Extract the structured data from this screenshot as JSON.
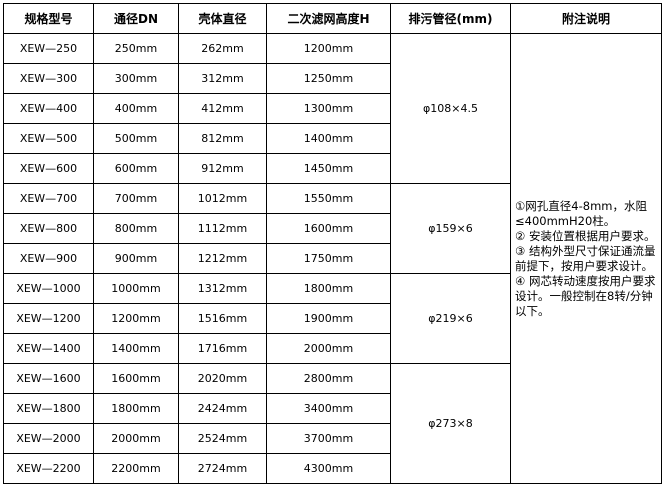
{
  "headers": [
    "规格型号",
    "通径DN",
    "壳体直径",
    "二次滤网高度H",
    "排污管径(mm)",
    "附注说明"
  ],
  "rows": [
    [
      "XEW—250",
      "250mm",
      "262mm",
      "1200mm"
    ],
    [
      "XEW—300",
      "300mm",
      "312mm",
      "1250mm"
    ],
    [
      "XEW—400",
      "400mm",
      "412mm",
      "1300mm"
    ],
    [
      "XEW—500",
      "500mm",
      "812mm",
      "1400mm"
    ],
    [
      "XEW—600",
      "600mm",
      "912mm",
      "1450mm"
    ],
    [
      "XEW—700",
      "700mm",
      "1012mm",
      "1550mm"
    ],
    [
      "XEW—800",
      "800mm",
      "1112mm",
      "1600mm"
    ],
    [
      "XEW—900",
      "900mm",
      "1212mm",
      "1750mm"
    ],
    [
      "XEW—1000",
      "1000mm",
      "1312mm",
      "1800mm"
    ],
    [
      "XEW—1200",
      "1200mm",
      "1516mm",
      "1900mm"
    ],
    [
      "XEW—1400",
      "1400mm",
      "1716mm",
      "2000mm"
    ],
    [
      "XEW—1600",
      "1600mm",
      "2020mm",
      "2800mm"
    ],
    [
      "XEW—1800",
      "1800mm",
      "2424mm",
      "3400mm"
    ],
    [
      "XEW—2000",
      "2000mm",
      "2524mm",
      "3700mm"
    ],
    [
      "XEW—2200",
      "2200mm",
      "2724mm",
      "4300mm"
    ]
  ],
  "drain_groups": [
    {
      "value": "φ108×4.5",
      "span": 5
    },
    {
      "value": "φ159×6",
      "span": 3
    },
    {
      "value": "φ219×6",
      "span": 3
    },
    {
      "value": "φ273×8",
      "span": 4
    }
  ],
  "notes": [
    "①网孔直径4-8mm，水阻≤400mmH20柱。",
    "② 安装位置根据用户要求。",
    "③ 结构外型尺寸保证通流量前提下，按用户要求设计。",
    "④ 网芯转动速度按用户要求设计。一般控制在8转/分钟以下。"
  ]
}
